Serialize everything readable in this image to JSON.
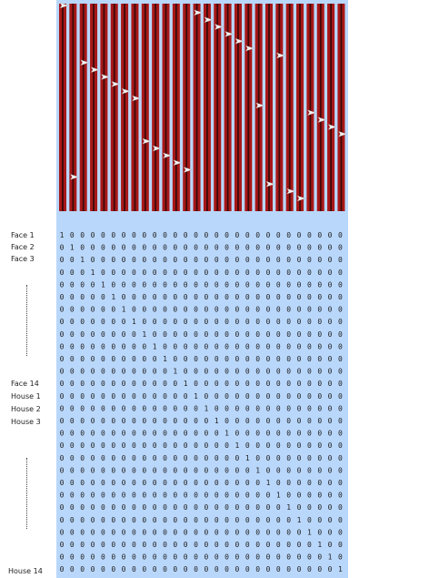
{
  "colors": {
    "panel_bg": "#b9d7fb",
    "stripe_red": "#a81818",
    "stripe_dark": "#3a0a0a",
    "arrow": "#f2f2f2",
    "text": "#222222"
  },
  "labels": {
    "face_1": "Face 1",
    "face_2": "Face 2",
    "face_3": "Face 3",
    "face_14": "Face 14",
    "house_1": "House 1",
    "house_2": "House 2",
    "house_3": "House 3",
    "house_14": "House 14"
  },
  "matrix": {
    "rows": 28,
    "cols": 28,
    "one_positions": [
      0,
      1,
      2,
      3,
      4,
      5,
      6,
      7,
      8,
      9,
      10,
      11,
      12,
      13,
      14,
      15,
      16,
      17,
      18,
      19,
      20,
      21,
      22,
      23,
      24,
      25,
      26,
      27
    ]
  },
  "stripes": {
    "count": 28,
    "arrow_order": [
      0,
      13,
      14,
      15,
      16,
      17,
      18,
      21,
      2,
      3,
      4,
      5,
      6,
      7,
      19,
      24,
      25,
      26,
      27,
      8,
      9,
      10,
      11,
      12,
      1,
      20,
      22,
      23
    ]
  }
}
